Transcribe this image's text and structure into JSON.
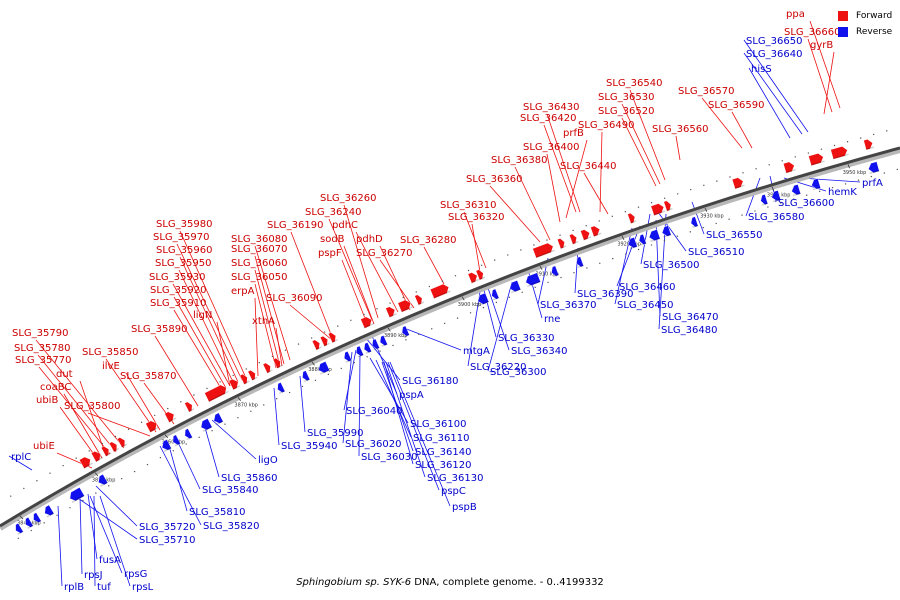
{
  "legend": {
    "forward_label": "Forward",
    "reverse_label": "Reverse",
    "forward_color": "#ee1111",
    "reverse_color": "#1111ee"
  },
  "caption": {
    "organism": "Sphingobium sp. SYK-6",
    "rest": " DNA, complete genome. - 0..4199332"
  },
  "ticks": [
    "3840 kbp",
    "3850 kbp",
    "3860 kbp",
    "3870 kbp",
    "3880 kbp",
    "3890 kbp",
    "3900 kbp",
    "3910 kbp",
    "3920 kbp",
    "3930 kbp",
    "3940 kbp",
    "3950 kbp"
  ],
  "forward_genes": [
    "ppa",
    "SLG_36660",
    "gyrB",
    "SLG_36540",
    "SLG_36530",
    "SLG_36520",
    "SLG_36570",
    "SLG_36590",
    "SLG_36430",
    "SLG_36420",
    "SLG_36490",
    "SLG_36560",
    "prfB",
    "SLG_36400",
    "SLG_36380",
    "SLG_36440",
    "SLG_36360",
    "SLG_36260",
    "SLG_36240",
    "SLG_36190",
    "pdhC",
    "SLG_36310",
    "SLG_36320",
    "sodB",
    "pdhD",
    "pspF",
    "SLG_36270",
    "SLG_36280",
    "SLG_35980",
    "SLG_36080",
    "SLG_35970",
    "SLG_36070",
    "SLG_35960",
    "SLG_36060",
    "SLG_35950",
    "SLG_36050",
    "SLG_35930",
    "erpA",
    "SLG_35920",
    "SLG_36090",
    "SLG_35910",
    "ligN",
    "xthA",
    "SLG_35890",
    "SLG_35790",
    "SLG_35780",
    "SLG_35850",
    "SLG_35770",
    "ilvE",
    "dut",
    "SLG_35870",
    "coaBC",
    "ubiB",
    "SLG_35800",
    "ubiE"
  ],
  "reverse_genes": [
    "SLG_36650",
    "SLG_36640",
    "hisS",
    "hemK",
    "prfA",
    "SLG_36600",
    "SLG_36580",
    "SLG_36550",
    "SLG_36510",
    "SLG_36500",
    "SLG_36390",
    "SLG_36460",
    "SLG_36370",
    "SLG_36450",
    "SLG_36470",
    "rne",
    "SLG_36480",
    "SLG_36330",
    "SLG_36340",
    "mtgA",
    "SLG_36220",
    "SLG_36300",
    "SLG_36180",
    "pspA",
    "SLG_36040",
    "SLG_36100",
    "SLG_35990",
    "SLG_36020",
    "SLG_36110",
    "SLG_35940",
    "SLG_36030",
    "SLG_36140",
    "SLG_36120",
    "SLG_36130",
    "pspC",
    "pspB",
    "ligO",
    "SLG_35860",
    "SLG_35840",
    "SLG_35810",
    "SLG_35720",
    "SLG_35820",
    "SLG_35710",
    "rplC",
    "fusA",
    "rpsJ",
    "rpsG",
    "rplB",
    "tuf",
    "rpsL"
  ]
}
